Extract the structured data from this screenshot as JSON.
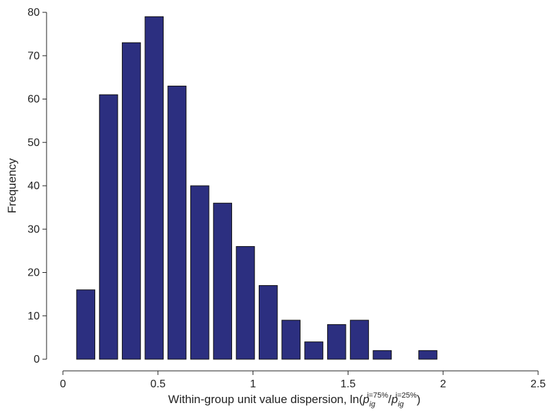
{
  "chart_data": {
    "type": "bar",
    "ylabel": "Frequency",
    "xlabel": [
      "Within-group unit value dispersion, ln(",
      "p",
      "ig",
      "i=75%",
      "/",
      "p",
      "ig",
      "i=25%",
      ")"
    ],
    "x": [
      0,
      0.12,
      0.24,
      0.36,
      0.48,
      0.6,
      0.72,
      0.84,
      0.96,
      1.08,
      1.2,
      1.32,
      1.44,
      1.56,
      1.68,
      1.8,
      1.92,
      2.04,
      2.16,
      2.28,
      2.4
    ],
    "values": [
      0,
      16,
      61,
      73,
      79,
      63,
      40,
      36,
      26,
      17,
      9,
      4,
      8,
      9,
      2,
      0,
      2,
      0,
      0,
      0,
      0
    ],
    "color": "#2c2f80",
    "xlim": [
      -0.043,
      2.5
    ],
    "xticks": [
      0,
      0.5,
      1,
      1.5,
      2,
      2.5
    ],
    "ylim": [
      0,
      80
    ],
    "yticks": [
      0,
      10,
      20,
      30,
      40,
      50,
      60,
      70,
      80
    ],
    "grid": false
  }
}
